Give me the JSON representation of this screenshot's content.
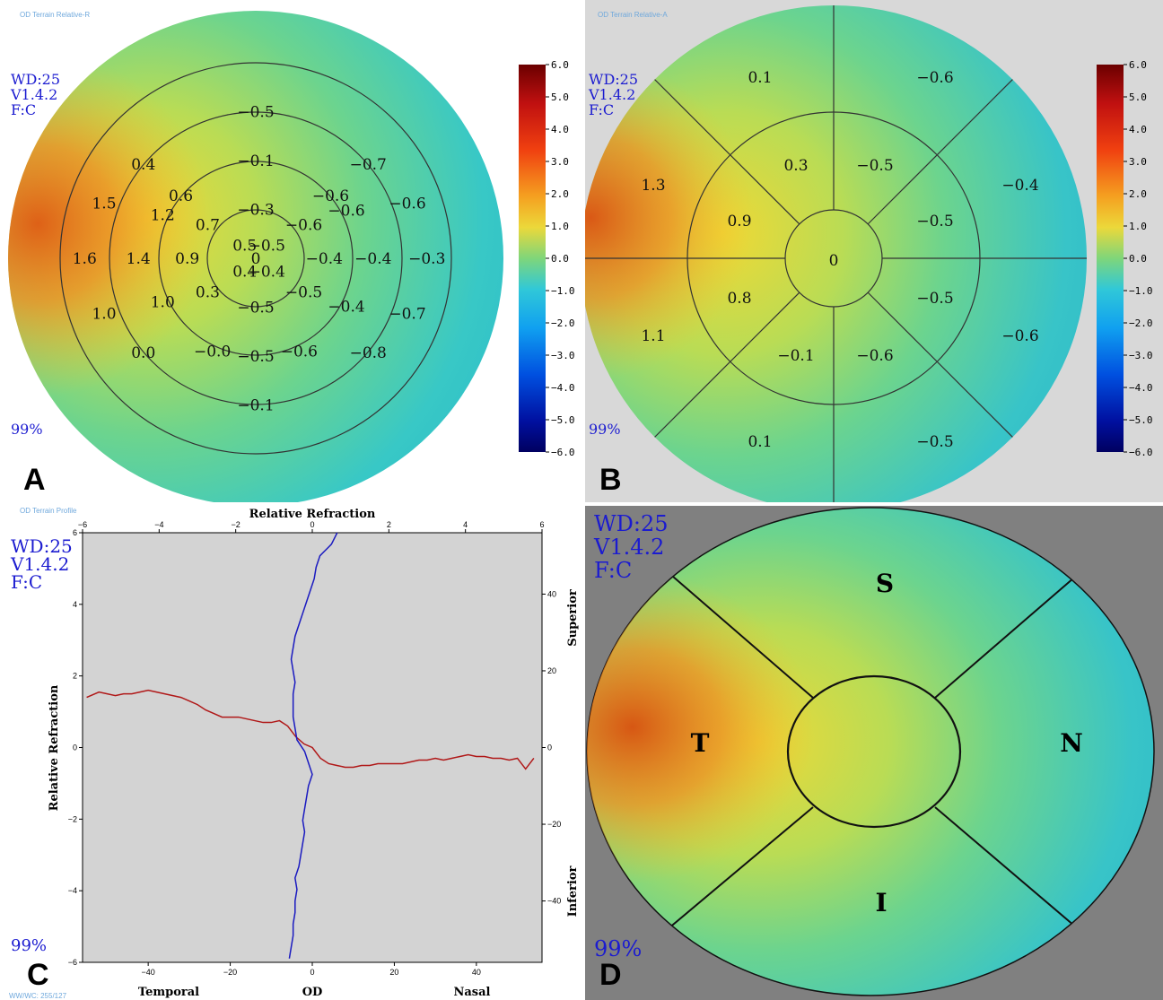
{
  "colorbar": {
    "ticks": [
      "6.0",
      "5.0",
      "4.0",
      "3.0",
      "2.0",
      "1.0",
      "0.0",
      "−1.0",
      "−2.0",
      "−3.0",
      "−4.0",
      "−5.0",
      "−6.0"
    ],
    "colors": [
      "#7a0000",
      "#c01010",
      "#e03010",
      "#f06010",
      "#f5a020",
      "#eed83c",
      "#9ad860",
      "#50d0c8",
      "#10a8e8",
      "#0070f0",
      "#0030d0",
      "#000080",
      "#000060"
    ]
  },
  "panels": {
    "A": {
      "label": "A",
      "header": "OD Terrain Relative-R",
      "wd": "WD:25",
      "version": "V1.4.2",
      "f": "F:C",
      "pct": "99%",
      "values": [
        {
          "t": "−0.5",
          "r": 3,
          "a": 90
        },
        {
          "t": "0.4",
          "r": 3,
          "a": 140
        },
        {
          "t": "−0.7",
          "r": 3,
          "a": 40
        },
        {
          "t": "−0.1",
          "r": 2,
          "a": 90
        },
        {
          "t": "0.6",
          "r": 2,
          "a": 140
        },
        {
          "t": "−0.6",
          "r": 2,
          "a": 40
        },
        {
          "t": "1.5",
          "r": 3.3,
          "a": 160
        },
        {
          "t": "−0.6",
          "r": 3.3,
          "a": 20
        },
        {
          "t": "−0.3",
          "r": 1,
          "a": 90
        },
        {
          "t": "1.2",
          "r": 2.1,
          "a": 155
        },
        {
          "t": "0.7",
          "r": 1.2,
          "a": 145
        },
        {
          "t": "−0.6",
          "r": 1.2,
          "a": 35
        },
        {
          "t": "−0.6",
          "r": 2.1,
          "a": 28
        },
        {
          "t": "0.5",
          "r": 0.35,
          "a": 130
        },
        {
          "t": "−0.5",
          "r": 0.35,
          "a": 50
        },
        {
          "t": "1.6",
          "r": 3.5,
          "a": 180
        },
        {
          "t": "1.4",
          "r": 2.4,
          "a": 180
        },
        {
          "t": "0.9",
          "r": 1.4,
          "a": 180
        },
        {
          "t": "0",
          "r": 0,
          "a": 0
        },
        {
          "t": "−0.4",
          "r": 1.4,
          "a": 0
        },
        {
          "t": "−0.4",
          "r": 2.4,
          "a": 0
        },
        {
          "t": "−0.3",
          "r": 3.5,
          "a": 0
        },
        {
          "t": "0.4",
          "r": 0.35,
          "a": 230
        },
        {
          "t": "−0.4",
          "r": 0.35,
          "a": 310
        },
        {
          "t": "1.0",
          "r": 2.1,
          "a": 205
        },
        {
          "t": "0.3",
          "r": 1.2,
          "a": 215
        },
        {
          "t": "−0.5",
          "r": 1.2,
          "a": 325
        },
        {
          "t": "−0.4",
          "r": 2.1,
          "a": 332
        },
        {
          "t": "1.0",
          "r": 3.3,
          "a": 200
        },
        {
          "t": "−0.7",
          "r": 3.3,
          "a": 340
        },
        {
          "t": "−0.5",
          "r": 1,
          "a": 270
        },
        {
          "t": "−0.0",
          "r": 2.1,
          "a": 245
        },
        {
          "t": "−0.6",
          "r": 2.1,
          "a": 295
        },
        {
          "t": "−0.5",
          "r": 2,
          "a": 270
        },
        {
          "t": "0.0",
          "r": 3,
          "a": 220
        },
        {
          "t": "−0.8",
          "r": 3,
          "a": 320
        },
        {
          "t": "−0.1",
          "r": 3,
          "a": 270
        }
      ]
    },
    "B": {
      "label": "B",
      "header": "OD Terrain Relative-A",
      "wd": "WD:25",
      "version": "V1.4.2",
      "f": "F:C",
      "pct": "99%",
      "values": [
        "0.1",
        "−0.6",
        "1.3",
        "0.3",
        "−0.5",
        "−0.4",
        "0.9",
        "−0.5",
        "0",
        "0.8",
        "−0.5",
        "1.1",
        "−0.6",
        "−0.1",
        "−0.6",
        "0.1",
        "−0.5"
      ]
    },
    "C": {
      "label": "C",
      "header": "OD Terrain Profile",
      "footer": "WW/WC: 255/127",
      "wd": "WD:25",
      "version": "V1.4.2",
      "f": "F:C",
      "pct": "99%"
    },
    "D": {
      "label": "D",
      "wd": "WD:25",
      "version": "V1.4.2",
      "f": "F:C",
      "pct": "99%",
      "sectors": {
        "s": "S",
        "t": "T",
        "n": "N",
        "i": "I"
      }
    }
  },
  "chart_data": {
    "type": "line",
    "title": "Relative Refraction",
    "ylabel": "Relative Refraction",
    "xlabel_left": "Temporal",
    "xlabel_center": "OD",
    "xlabel_right": "Nasal",
    "ylabel_right_top": "Superior",
    "ylabel_right_bottom": "Inferior",
    "xlim": [
      -56,
      56
    ],
    "ylim": [
      -6,
      6
    ],
    "top_xlim": [
      -6,
      6
    ],
    "right_ylim": [
      -56,
      56
    ],
    "bottom_ticks": [
      -40,
      -20,
      0,
      20,
      40
    ],
    "left_ticks": [
      -6,
      -4,
      -2,
      0,
      2,
      4,
      6
    ],
    "top_ticks": [
      -6,
      -4,
      -2,
      0,
      2,
      4,
      6
    ],
    "right_ticks": [
      -40,
      -20,
      0,
      20,
      40
    ],
    "series": [
      {
        "name": "",
        "color": "#b01818",
        "axis": "horizontal",
        "x": [
          -55,
          -52,
          -50,
          -48,
          -46,
          -44,
          -42,
          -40,
          -38,
          -36,
          -34,
          -32,
          -30,
          -28,
          -26,
          -24,
          -22,
          -20,
          -18,
          -16,
          -14,
          -12,
          -10,
          -8,
          -6,
          -4,
          -2,
          0,
          2,
          4,
          6,
          8,
          10,
          12,
          14,
          16,
          18,
          20,
          22,
          24,
          26,
          28,
          30,
          32,
          34,
          36,
          38,
          40,
          42,
          44,
          46,
          48,
          50,
          52,
          54
        ],
        "y": [
          1.4,
          1.55,
          1.5,
          1.45,
          1.5,
          1.5,
          1.55,
          1.6,
          1.55,
          1.5,
          1.45,
          1.4,
          1.3,
          1.2,
          1.05,
          0.95,
          0.85,
          0.85,
          0.85,
          0.8,
          0.75,
          0.7,
          0.7,
          0.75,
          0.6,
          0.3,
          0.1,
          0.0,
          -0.3,
          -0.45,
          -0.5,
          -0.55,
          -0.55,
          -0.5,
          -0.5,
          -0.45,
          -0.45,
          -0.45,
          -0.45,
          -0.4,
          -0.35,
          -0.35,
          -0.3,
          -0.35,
          -0.3,
          -0.25,
          -0.2,
          -0.25,
          -0.25,
          -0.3,
          -0.3,
          -0.35,
          -0.3,
          -0.6,
          -0.3
        ]
      },
      {
        "name": "",
        "color": "#1a1ac0",
        "axis": "vertical",
        "x": [
          -0.6,
          -0.55,
          -0.5,
          -0.5,
          -0.45,
          -0.45,
          -0.4,
          -0.45,
          -0.35,
          -0.3,
          -0.25,
          -0.2,
          -0.25,
          -0.2,
          -0.15,
          -0.1,
          0.0,
          -0.1,
          -0.2,
          -0.4,
          -0.45,
          -0.5,
          -0.5,
          -0.5,
          -0.45,
          -0.5,
          -0.55,
          -0.5,
          -0.45,
          -0.35,
          -0.25,
          -0.15,
          -0.05,
          0.05,
          0.1,
          0.2,
          0.3,
          0.4,
          0.5,
          0.55,
          0.6,
          0.65
        ],
        "y": [
          -55,
          -52,
          -49,
          -46,
          -43,
          -40,
          -37,
          -34,
          -31,
          -28,
          -25,
          -22,
          -19,
          -16,
          -13,
          -10,
          -7,
          -4,
          -1,
          2,
          5,
          8,
          11,
          14,
          17,
          20,
          23,
          26,
          29,
          32,
          35,
          38,
          41,
          44,
          47,
          50,
          51,
          52,
          53,
          54,
          55,
          56
        ]
      }
    ]
  }
}
